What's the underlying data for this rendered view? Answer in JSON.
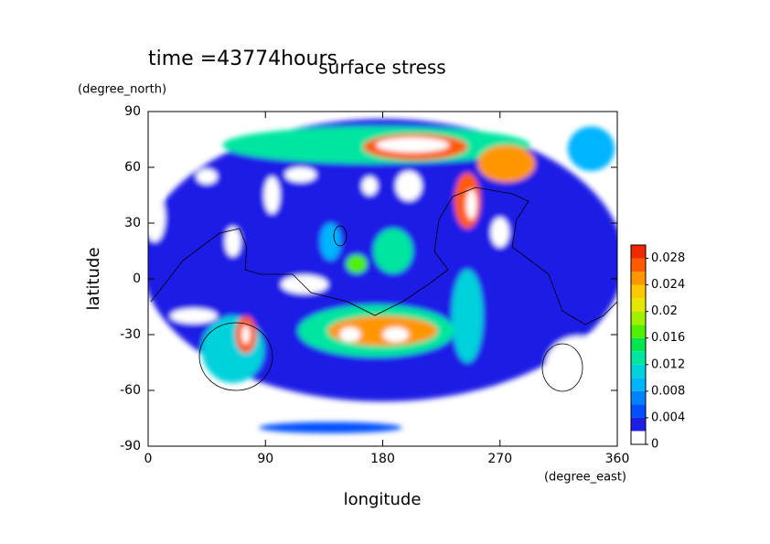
{
  "chart_data": {
    "type": "contour",
    "title": "surface stress",
    "time_label": "time =43774hours",
    "x_label": "longitude",
    "x_unit": "(degree_east)",
    "y_label": "latitude",
    "y_unit": "(degree_north)",
    "xlim": [
      0,
      360
    ],
    "xticks": [
      0,
      90,
      180,
      270,
      360
    ],
    "ylim": [
      -90,
      90
    ],
    "yticks": [
      -90,
      -60,
      -30,
      0,
      30,
      60,
      90
    ],
    "levels": [
      0,
      0.002,
      0.004,
      0.006,
      0.008,
      0.01,
      0.012,
      0.014,
      0.016,
      0.018,
      0.02,
      0.022,
      0.024,
      0.026,
      0.028,
      0.03
    ],
    "colors": [
      "#ffffff",
      "#1e1ee6",
      "#0050ff",
      "#0082ff",
      "#00b4ff",
      "#00d2dc",
      "#00e6a0",
      "#00e650",
      "#50f000",
      "#a0f000",
      "#e6e600",
      "#ffc800",
      "#ff9600",
      "#ff5a00",
      "#f02800"
    ],
    "colorbar_ticks": [
      0,
      0.004,
      0.008,
      0.012,
      0.016,
      0.02,
      0.024,
      0.028
    ],
    "blobs": [
      {
        "lon": 180,
        "lat": 10,
        "dlon": 185,
        "dlat": 76,
        "value": 0.003
      },
      {
        "lon": 140,
        "lat": -80,
        "dlon": 55,
        "dlat": 3,
        "value": 0.004
      },
      {
        "lon": 5,
        "lat": 33,
        "dlon": 8,
        "dlat": 13,
        "value": 0.001
      },
      {
        "lon": 95,
        "lat": 45,
        "dlon": 6,
        "dlat": 10,
        "value": 0.001
      },
      {
        "lon": 117,
        "lat": 56,
        "dlon": 12,
        "dlat": 4,
        "value": 0.001
      },
      {
        "lon": 45,
        "lat": 55,
        "dlon": 8,
        "dlat": 4,
        "value": 0.001
      },
      {
        "lon": 65,
        "lat": 20,
        "dlon": 6,
        "dlat": 8,
        "value": 0.001
      },
      {
        "lon": 35,
        "lat": -20,
        "dlon": 18,
        "dlat": 4,
        "value": 0.001
      },
      {
        "lon": 120,
        "lat": -3,
        "dlon": 18,
        "dlat": 5,
        "value": 0.001
      },
      {
        "lon": 270,
        "lat": 25,
        "dlon": 7,
        "dlat": 8,
        "value": 0.001
      },
      {
        "lon": 200,
        "lat": 50,
        "dlon": 10,
        "dlat": 8,
        "value": 0.001
      },
      {
        "lon": 170,
        "lat": 50,
        "dlon": 6,
        "dlat": 5,
        "value": 0.001
      },
      {
        "lon": 330,
        "lat": -47,
        "dlon": 25,
        "dlat": 16,
        "value": 0.001
      },
      {
        "lon": 340,
        "lat": 70,
        "dlon": 18,
        "dlat": 12,
        "value": 0.008
      },
      {
        "lon": 175,
        "lat": 72,
        "dlon": 118,
        "dlat": 10,
        "value": 0.012
      },
      {
        "lon": 275,
        "lat": 62,
        "dlon": 22,
        "dlat": 10,
        "value": 0.024
      },
      {
        "lon": 205,
        "lat": 71,
        "dlon": 40,
        "dlat": 7,
        "value": 0.026
      },
      {
        "lon": 203,
        "lat": 72,
        "dlon": 28,
        "dlat": 4,
        "value": 0.032
      },
      {
        "lon": 245,
        "lat": 42,
        "dlon": 10,
        "dlat": 15,
        "value": 0.026
      },
      {
        "lon": 248,
        "lat": 40,
        "dlon": 4,
        "dlat": 8,
        "value": 0.032
      },
      {
        "lon": 140,
        "lat": 20,
        "dlon": 8,
        "dlat": 10,
        "value": 0.008
      },
      {
        "lon": 188,
        "lat": 15,
        "dlon": 15,
        "dlat": 12,
        "value": 0.012
      },
      {
        "lon": 160,
        "lat": 8,
        "dlon": 8,
        "dlat": 5,
        "value": 0.016
      },
      {
        "lon": 245,
        "lat": -20,
        "dlon": 12,
        "dlat": 25,
        "value": 0.01
      },
      {
        "lon": 175,
        "lat": -28,
        "dlon": 60,
        "dlat": 14,
        "value": 0.012
      },
      {
        "lon": 180,
        "lat": -28,
        "dlon": 42,
        "dlat": 8,
        "value": 0.024
      },
      {
        "lon": 190,
        "lat": -30,
        "dlon": 10,
        "dlat": 4,
        "value": 0.032
      },
      {
        "lon": 155,
        "lat": -30,
        "dlon": 8,
        "dlat": 4,
        "value": 0.032
      },
      {
        "lon": 65,
        "lat": -38,
        "dlon": 24,
        "dlat": 18,
        "value": 0.01
      },
      {
        "lon": 75,
        "lat": -30,
        "dlon": 8,
        "dlat": 10,
        "value": 0.026
      },
      {
        "lon": 75,
        "lat": -30,
        "dlon": 3,
        "dlat": 5,
        "value": 0.032
      }
    ]
  }
}
